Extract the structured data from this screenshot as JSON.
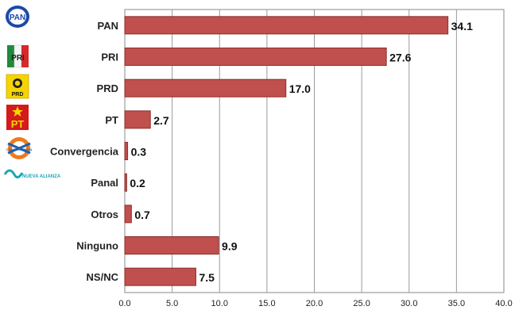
{
  "chart_data": {
    "type": "bar",
    "orientation": "horizontal",
    "categories": [
      "PAN",
      "PRI",
      "PRD",
      "PT",
      "Convergencia",
      "Panal",
      "Otros",
      "Ninguno",
      "NS/NC"
    ],
    "values": [
      34.1,
      27.6,
      17.0,
      2.7,
      0.3,
      0.2,
      0.7,
      9.9,
      7.5
    ],
    "value_labels": [
      "34.1",
      "27.6",
      "17.0",
      "2.7",
      "0.3",
      "0.2",
      "0.7",
      "9.9",
      "7.5"
    ],
    "xlim": [
      0,
      40
    ],
    "ticks": [
      "0.0",
      "5.0",
      "10.0",
      "15.0",
      "20.0",
      "25.0",
      "30.0",
      "35.0",
      "40.0"
    ],
    "grid": true,
    "bar_color": "#c0504d",
    "bar_edge_color": "#8c2d2b"
  },
  "logos": [
    {
      "icon": "pan-logo-icon",
      "text": "PAN"
    },
    {
      "icon": "pri-logo-icon",
      "text": "PRI"
    },
    {
      "icon": "prd-logo-icon",
      "text": "PRD"
    },
    {
      "icon": "pt-logo-icon",
      "text": "PT"
    },
    {
      "icon": "convergencia-logo-icon",
      "text": "CONVERGENCIA"
    },
    {
      "icon": "nueva-alianza-logo-icon",
      "text": "NUEVA ALIANZA"
    }
  ]
}
